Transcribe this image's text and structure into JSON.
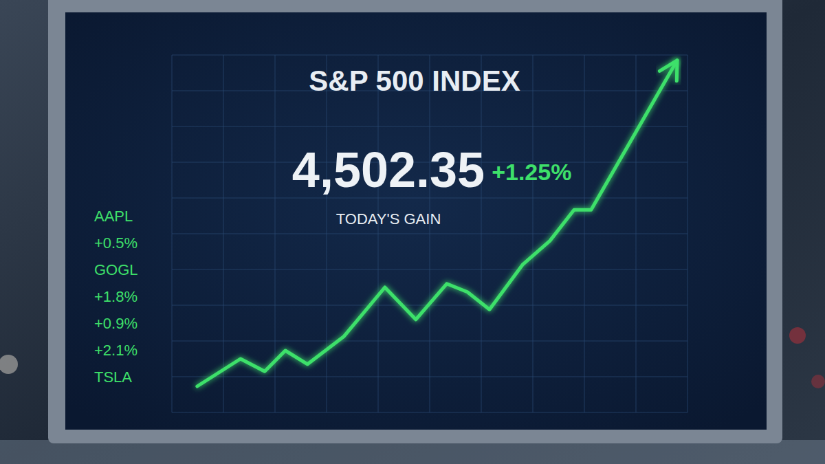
{
  "chart_data": {
    "type": "line",
    "title": "S&P 500 INDEX",
    "annotations": [
      "4,502.35",
      "+1.25%",
      "TODAY'S GAIN"
    ],
    "ticker_list": [
      "AAPL",
      "+0.5%",
      "GOGL",
      "+1.8%",
      "+0.9%",
      "+2.1%",
      "TSLA"
    ],
    "x": [
      4.9,
      13.3,
      18,
      22,
      26.3,
      33.3,
      41.3,
      47.3,
      53.3,
      57.3,
      61.6,
      68,
      73.3,
      78,
      81.3,
      98
    ],
    "values": [
      7.3,
      15,
      11.5,
      17.3,
      13.5,
      21.2,
      35,
      26,
      36,
      33.7,
      28.8,
      41.3,
      48,
      56.7,
      56.7,
      98.5
    ],
    "color": "#3ee06a",
    "xlim": [
      0,
      100
    ],
    "ylim": [
      0,
      100
    ],
    "xticks": [
      0,
      10,
      20,
      30,
      40,
      50,
      60,
      70,
      80,
      90,
      100
    ],
    "yticks": [
      0,
      10,
      20,
      30,
      40,
      50,
      60,
      70,
      80,
      90,
      100
    ],
    "grid": true,
    "tick_labels": false
  }
}
